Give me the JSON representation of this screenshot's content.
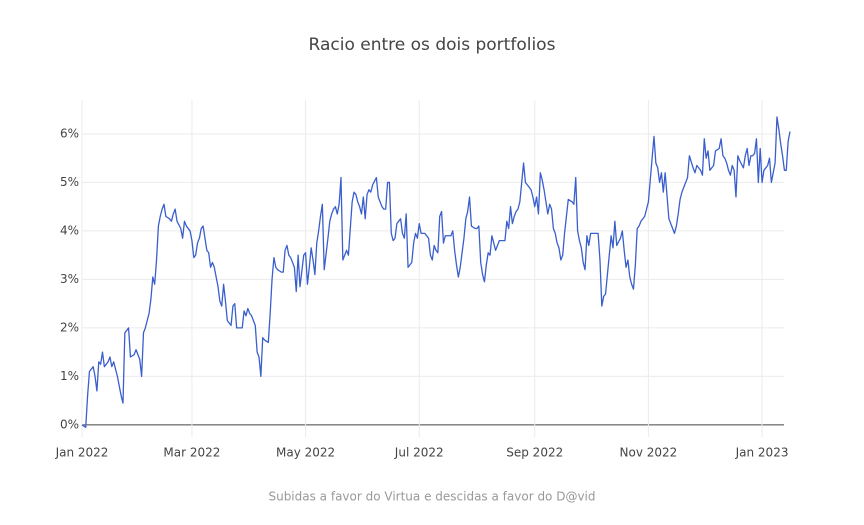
{
  "chart_data": {
    "type": "line",
    "title": "Racio entre os dois portfolios",
    "x_label": "Subidas a favor do Virtua e descidas a favor do D@vid",
    "xlim": [
      0,
      380
    ],
    "ylim": [
      -0.25,
      6.7
    ],
    "grid": true,
    "color": "#3a5fcd",
    "xticks": [
      {
        "value": 0,
        "label": "Jan 2022"
      },
      {
        "value": 59,
        "label": "Mar 2022"
      },
      {
        "value": 120,
        "label": "May 2022"
      },
      {
        "value": 181,
        "label": "Jul 2022"
      },
      {
        "value": 243,
        "label": "Sep 2022"
      },
      {
        "value": 304,
        "label": "Nov 2022"
      },
      {
        "value": 365,
        "label": "Jan 2023"
      }
    ],
    "yticks": [
      {
        "value": 0,
        "label": "0%"
      },
      {
        "value": 1,
        "label": "1%"
      },
      {
        "value": 2,
        "label": "2%"
      },
      {
        "value": 3,
        "label": "3%"
      },
      {
        "value": 4,
        "label": "4%"
      },
      {
        "value": 5,
        "label": "5%"
      },
      {
        "value": 6,
        "label": "6%"
      }
    ],
    "x": [
      0,
      2,
      3,
      4,
      6,
      7,
      8,
      9,
      10,
      11,
      12,
      14,
      15,
      16,
      17,
      19,
      21,
      22,
      23,
      24,
      25,
      26,
      28,
      29,
      31,
      32,
      33,
      34,
      36,
      37,
      38,
      39,
      40,
      41,
      42,
      43,
      44,
      45,
      47,
      48,
      49,
      50,
      51,
      53,
      54,
      55,
      56,
      58,
      59,
      60,
      61,
      62,
      63,
      64,
      65,
      67,
      68,
      69,
      70,
      71,
      72,
      73,
      74,
      75,
      76,
      77,
      78,
      80,
      81,
      82,
      83,
      85,
      86,
      87,
      88,
      89,
      90,
      91,
      93,
      94,
      95,
      96,
      97,
      98,
      100,
      101,
      102,
      103,
      104,
      105,
      107,
      108,
      109,
      110,
      111,
      112,
      113,
      114,
      115,
      116,
      117,
      119,
      120,
      121,
      122,
      123,
      124,
      125,
      126,
      127,
      128,
      129,
      130,
      132,
      133,
      134,
      135,
      136,
      137,
      138,
      139,
      140,
      141,
      142,
      143,
      145,
      146,
      147,
      148,
      149,
      150,
      151,
      152,
      153,
      154,
      155,
      156,
      158,
      159,
      160,
      161,
      162,
      163,
      164,
      165,
      166,
      167,
      168,
      169,
      171,
      172,
      173,
      174,
      175,
      176,
      177,
      178,
      179,
      180,
      181,
      182,
      184,
      185,
      186,
      187,
      188,
      189,
      190,
      191,
      192,
      193,
      194,
      195,
      196,
      198,
      199,
      200,
      201,
      202,
      203,
      204,
      205,
      206,
      207,
      208,
      209,
      211,
      212,
      213,
      214,
      215,
      216,
      217,
      218,
      219,
      220,
      221,
      222,
      224,
      225,
      227,
      228,
      229,
      230,
      231,
      232,
      233,
      234,
      235,
      237,
      238,
      239,
      240,
      241,
      242,
      243,
      244,
      245,
      246,
      247,
      248,
      250,
      251,
      252,
      253,
      254,
      255,
      256,
      257,
      258,
      259,
      260,
      261,
      263,
      264,
      265,
      266,
      267,
      268,
      269,
      270,
      271,
      272,
      273,
      276,
      277,
      278,
      279,
      280,
      281,
      282,
      283,
      284,
      285,
      286,
      287,
      289,
      290,
      291,
      292,
      293,
      294,
      295,
      296,
      297,
      298,
      299,
      300,
      302,
      303,
      304,
      305,
      306,
      307,
      308,
      309,
      310,
      311,
      312,
      313,
      315,
      316,
      317,
      318,
      319,
      320,
      321,
      322,
      323,
      324,
      325,
      326,
      328,
      329,
      330,
      331,
      332,
      333,
      334,
      335,
      336,
      337,
      338,
      339,
      340,
      342,
      343,
      344,
      345,
      346,
      347,
      348,
      349,
      350,
      351,
      352,
      353,
      355,
      356,
      357,
      358,
      359,
      360,
      361,
      362,
      363,
      364,
      365,
      366,
      368,
      369,
      370,
      371,
      372,
      373,
      374,
      375,
      376,
      377,
      378,
      379,
      380
    ],
    "values": [
      0,
      -0.05,
      0.6,
      1.1,
      1.2,
      1.0,
      0.7,
      1.3,
      1.25,
      1.5,
      1.2,
      1.3,
      1.4,
      1.2,
      1.3,
      1.0,
      0.6,
      0.45,
      1.9,
      1.95,
      2.0,
      1.4,
      1.45,
      1.55,
      1.35,
      1.0,
      1.9,
      2.0,
      2.3,
      2.6,
      3.05,
      2.9,
      3.4,
      4.1,
      4.3,
      4.45,
      4.55,
      4.3,
      4.25,
      4.2,
      4.35,
      4.45,
      4.2,
      4.05,
      3.85,
      4.2,
      4.1,
      4.0,
      3.8,
      3.45,
      3.5,
      3.75,
      3.85,
      4.05,
      4.1,
      3.6,
      3.55,
      3.25,
      3.35,
      3.25,
      3.05,
      2.85,
      2.55,
      2.45,
      2.9,
      2.55,
      2.15,
      2.05,
      2.45,
      2.5,
      2.0,
      2.0,
      2.0,
      2.35,
      2.25,
      2.4,
      2.3,
      2.25,
      2.05,
      1.5,
      1.4,
      1.0,
      1.8,
      1.75,
      1.7,
      2.3,
      3.0,
      3.45,
      3.25,
      3.2,
      3.15,
      3.15,
      3.6,
      3.7,
      3.5,
      3.45,
      3.35,
      3.25,
      2.75,
      3.5,
      2.85,
      3.5,
      3.55,
      2.9,
      3.25,
      3.65,
      3.4,
      3.1,
      3.75,
      4.0,
      4.3,
      4.55,
      3.2,
      3.85,
      4.2,
      4.35,
      4.45,
      4.5,
      4.35,
      4.55,
      5.1,
      3.4,
      3.5,
      3.6,
      3.5,
      4.6,
      4.8,
      4.75,
      4.6,
      4.5,
      4.35,
      4.7,
      4.25,
      4.75,
      4.85,
      4.8,
      4.95,
      5.1,
      4.7,
      4.6,
      4.5,
      4.45,
      4.45,
      5.0,
      5.0,
      3.95,
      3.8,
      3.85,
      4.15,
      4.25,
      3.95,
      3.85,
      4.35,
      3.25,
      3.3,
      3.35,
      3.75,
      3.95,
      3.85,
      4.15,
      3.95,
      3.95,
      3.9,
      3.85,
      3.5,
      3.4,
      3.7,
      3.6,
      3.55,
      4.3,
      4.4,
      3.75,
      3.9,
      3.9,
      3.9,
      4.0,
      3.6,
      3.3,
      3.05,
      3.25,
      3.55,
      3.85,
      4.25,
      4.4,
      4.7,
      4.1,
      4.05,
      4.05,
      4.1,
      3.35,
      3.1,
      2.95,
      3.3,
      3.55,
      3.5,
      3.9,
      3.75,
      3.6,
      3.8,
      3.8,
      3.8,
      4.2,
      4.05,
      4.5,
      4.15,
      4.3,
      4.4,
      4.45,
      4.6,
      5.4,
      5.0,
      4.95,
      4.9,
      4.85,
      4.7,
      4.5,
      4.7,
      4.35,
      5.2,
      5.05,
      4.85,
      4.35,
      4.55,
      4.45,
      4.05,
      3.95,
      3.75,
      3.65,
      3.4,
      3.5,
      3.95,
      4.3,
      4.65,
      4.6,
      4.55,
      5.1,
      4.0,
      3.8,
      3.65,
      3.35,
      3.2,
      3.9,
      3.7,
      3.95,
      3.95,
      3.95,
      3.4,
      2.45,
      2.65,
      2.7,
      3.1,
      3.5,
      3.9,
      3.65,
      4.2,
      3.7,
      3.85,
      4.0,
      3.6,
      3.25,
      3.4,
      3.05,
      2.9,
      2.8,
      3.3,
      4.05,
      4.1,
      4.2,
      4.3,
      4.45,
      4.6,
      5.05,
      5.5,
      5.95,
      5.4,
      5.3,
      5.0,
      5.2,
      4.8,
      5.2,
      4.25,
      4.15,
      4.05,
      3.95,
      4.1,
      4.35,
      4.65,
      4.8,
      4.9,
      5.0,
      5.1,
      5.55,
      5.3,
      5.2,
      5.35,
      5.3,
      5.25,
      5.15,
      5.9,
      5.5,
      5.65,
      5.25,
      5.3,
      5.35,
      5.65,
      5.7,
      5.9,
      5.55,
      5.5,
      5.4,
      5.25,
      5.15,
      5.35,
      5.25,
      4.7,
      5.55,
      5.45,
      5.3,
      5.55,
      5.7,
      5.35,
      5.55,
      5.55,
      5.6,
      5.9,
      5.0,
      5.7,
      5.0,
      5.25,
      5.35,
      5.5,
      5.0,
      5.2,
      5.4,
      6.35,
      6.1,
      5.8,
      5.55,
      5.25,
      5.25,
      5.85,
      6.05
    ]
  }
}
